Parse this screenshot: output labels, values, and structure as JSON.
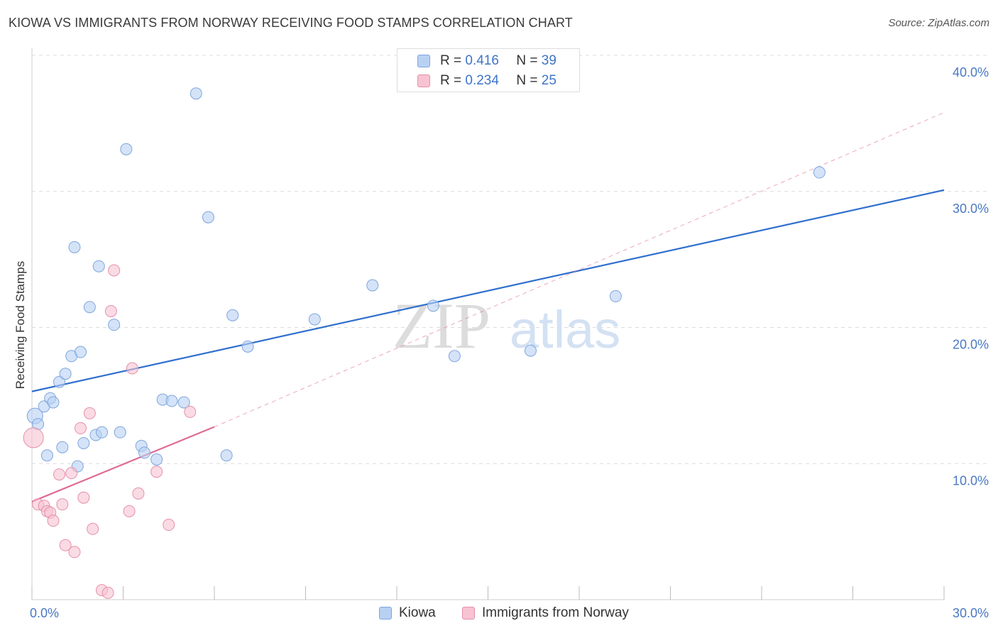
{
  "title": "KIOWA VS IMMIGRANTS FROM NORWAY RECEIVING FOOD STAMPS CORRELATION CHART",
  "source": "Source: ZipAtlas.com",
  "watermark": {
    "zip": "ZIP",
    "atlas": "atlas"
  },
  "legend_top": [
    {
      "r_label": "R =",
      "r_value": "0.416",
      "n_label": "N =",
      "n_value": "39"
    },
    {
      "r_label": "R =",
      "r_value": "0.234",
      "n_label": "N =",
      "n_value": "25"
    }
  ],
  "legend_bottom": [
    {
      "label": "Kiowa"
    },
    {
      "label": "Immigrants from Norway"
    }
  ],
  "colors": {
    "kiowa_fill": "#b8d1f3",
    "kiowa_stroke": "#7fa6dc",
    "kiowa_line": "#2f6fce",
    "norway_fill": "#f7c3d2",
    "norway_stroke": "#e68fab",
    "norway_line": "#e06b96",
    "tick_text": "#4a78c4",
    "grid": "#dcdcdc"
  },
  "chart_data": {
    "type": "scatter",
    "title": "KIOWA VS IMMIGRANTS FROM NORWAY RECEIVING FOOD STAMPS CORRELATION CHART",
    "xlabel": "",
    "ylabel": "Receiving Food Stamps",
    "xlim": [
      0,
      30
    ],
    "ylim": [
      0,
      40
    ],
    "x_ticks": [
      "0.0%",
      "30.0%"
    ],
    "y_ticks": [
      {
        "value": 10,
        "label": "10.0%"
      },
      {
        "value": 20,
        "label": "20.0%"
      },
      {
        "value": 30,
        "label": "30.0%"
      },
      {
        "value": 40,
        "label": "40.0%"
      }
    ],
    "grid": true,
    "legend_position": "top-center",
    "series": [
      {
        "name": "Kiowa",
        "R": 0.416,
        "N": 39,
        "trend": {
          "x": [
            0,
            30
          ],
          "y": [
            15.3,
            30.1
          ],
          "dashed_extension": false
        },
        "points": [
          {
            "x": 0.1,
            "y": 13.5,
            "r": 11
          },
          {
            "x": 0.2,
            "y": 12.9,
            "r": 8
          },
          {
            "x": 0.4,
            "y": 14.2,
            "r": 8
          },
          {
            "x": 0.5,
            "y": 10.6,
            "r": 8
          },
          {
            "x": 0.6,
            "y": 14.8,
            "r": 8
          },
          {
            "x": 0.7,
            "y": 14.5,
            "r": 8
          },
          {
            "x": 0.9,
            "y": 16.0,
            "r": 8
          },
          {
            "x": 1.0,
            "y": 11.2,
            "r": 8
          },
          {
            "x": 1.1,
            "y": 16.6,
            "r": 8
          },
          {
            "x": 1.3,
            "y": 17.9,
            "r": 8
          },
          {
            "x": 1.4,
            "y": 25.9,
            "r": 8
          },
          {
            "x": 1.5,
            "y": 9.8,
            "r": 8
          },
          {
            "x": 1.6,
            "y": 18.2,
            "r": 8
          },
          {
            "x": 1.7,
            "y": 11.5,
            "r": 8
          },
          {
            "x": 1.9,
            "y": 21.5,
            "r": 8
          },
          {
            "x": 2.1,
            "y": 12.1,
            "r": 8
          },
          {
            "x": 2.2,
            "y": 24.5,
            "r": 8
          },
          {
            "x": 2.3,
            "y": 12.3,
            "r": 8
          },
          {
            "x": 2.7,
            "y": 20.2,
            "r": 8
          },
          {
            "x": 2.9,
            "y": 12.3,
            "r": 8
          },
          {
            "x": 3.1,
            "y": 33.1,
            "r": 8
          },
          {
            "x": 3.6,
            "y": 11.3,
            "r": 8
          },
          {
            "x": 3.7,
            "y": 10.8,
            "r": 8
          },
          {
            "x": 4.1,
            "y": 10.3,
            "r": 8
          },
          {
            "x": 4.3,
            "y": 14.7,
            "r": 8
          },
          {
            "x": 4.6,
            "y": 14.6,
            "r": 8
          },
          {
            "x": 5.0,
            "y": 14.5,
            "r": 8
          },
          {
            "x": 5.4,
            "y": 37.2,
            "r": 8
          },
          {
            "x": 5.8,
            "y": 28.1,
            "r": 8
          },
          {
            "x": 6.4,
            "y": 10.6,
            "r": 8
          },
          {
            "x": 6.6,
            "y": 20.9,
            "r": 8
          },
          {
            "x": 7.1,
            "y": 18.6,
            "r": 8
          },
          {
            "x": 9.3,
            "y": 20.6,
            "r": 8
          },
          {
            "x": 11.2,
            "y": 23.1,
            "r": 8
          },
          {
            "x": 13.2,
            "y": 21.6,
            "r": 8
          },
          {
            "x": 13.9,
            "y": 17.9,
            "r": 8
          },
          {
            "x": 16.4,
            "y": 18.3,
            "r": 8
          },
          {
            "x": 19.2,
            "y": 22.3,
            "r": 8
          },
          {
            "x": 25.9,
            "y": 31.4,
            "r": 8
          }
        ]
      },
      {
        "name": "Immigrants from Norway",
        "R": 0.234,
        "N": 25,
        "trend": {
          "x": [
            0,
            6.0
          ],
          "y": [
            7.2,
            12.7
          ],
          "dashed_extension": true,
          "dashed_to": {
            "x": 30,
            "y": 35.8
          }
        },
        "points": [
          {
            "x": 0.05,
            "y": 11.9,
            "r": 14
          },
          {
            "x": 0.2,
            "y": 7.0,
            "r": 8
          },
          {
            "x": 0.4,
            "y": 6.9,
            "r": 8
          },
          {
            "x": 0.5,
            "y": 6.5,
            "r": 8
          },
          {
            "x": 0.6,
            "y": 6.4,
            "r": 8
          },
          {
            "x": 0.7,
            "y": 5.8,
            "r": 8
          },
          {
            "x": 0.9,
            "y": 9.2,
            "r": 8
          },
          {
            "x": 1.0,
            "y": 7.0,
            "r": 8
          },
          {
            "x": 1.1,
            "y": 4.0,
            "r": 8
          },
          {
            "x": 1.3,
            "y": 9.3,
            "r": 8
          },
          {
            "x": 1.4,
            "y": 3.5,
            "r": 8
          },
          {
            "x": 1.6,
            "y": 12.6,
            "r": 8
          },
          {
            "x": 1.7,
            "y": 7.5,
            "r": 8
          },
          {
            "x": 1.9,
            "y": 13.7,
            "r": 8
          },
          {
            "x": 2.0,
            "y": 5.2,
            "r": 8
          },
          {
            "x": 2.3,
            "y": 0.7,
            "r": 8
          },
          {
            "x": 2.5,
            "y": 0.5,
            "r": 8
          },
          {
            "x": 2.6,
            "y": 21.2,
            "r": 8
          },
          {
            "x": 2.7,
            "y": 24.2,
            "r": 8
          },
          {
            "x": 3.2,
            "y": 6.5,
            "r": 8
          },
          {
            "x": 3.3,
            "y": 17.0,
            "r": 8
          },
          {
            "x": 3.5,
            "y": 7.8,
            "r": 8
          },
          {
            "x": 4.1,
            "y": 9.4,
            "r": 8
          },
          {
            "x": 4.5,
            "y": 5.5,
            "r": 8
          },
          {
            "x": 5.2,
            "y": 13.8,
            "r": 8
          }
        ]
      }
    ]
  }
}
